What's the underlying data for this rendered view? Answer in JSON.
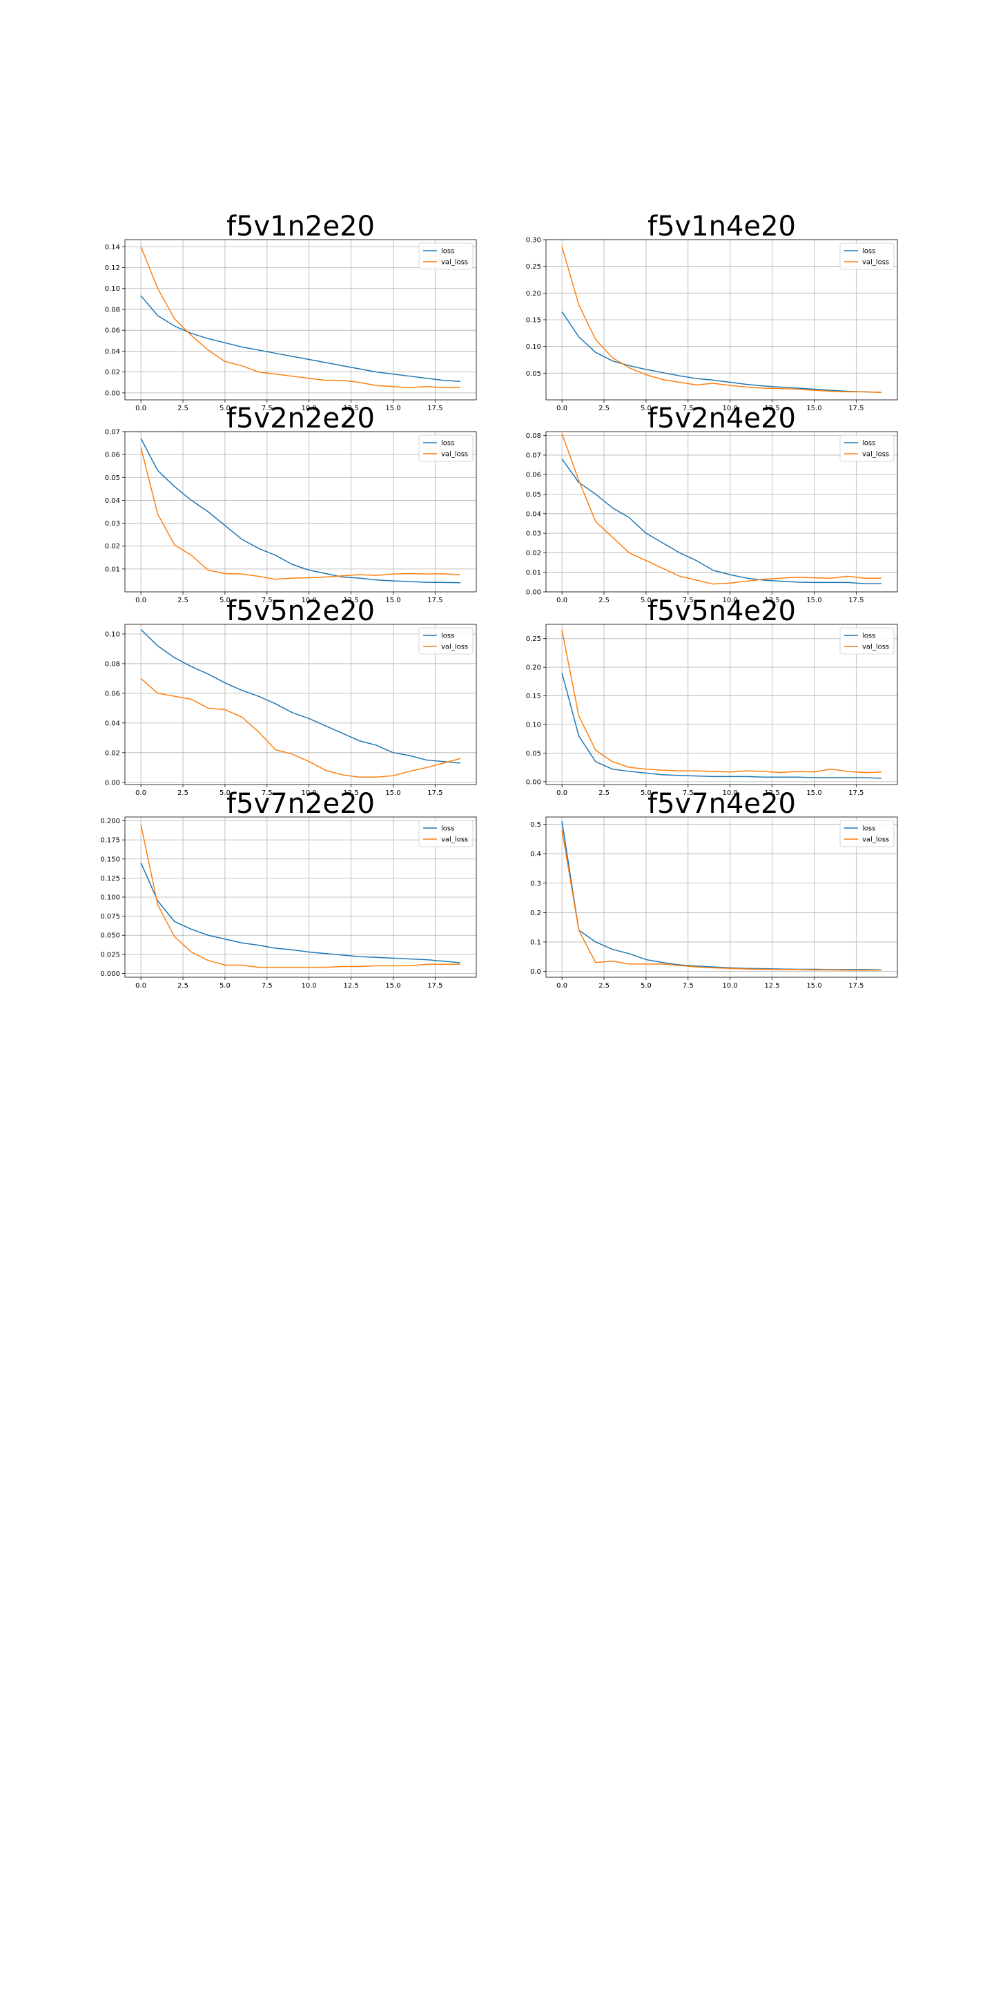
{
  "chart_data": [
    {
      "type": "line",
      "title": "f5v1n2e20",
      "xlabel": "",
      "ylabel": "",
      "x": [
        0,
        1,
        2,
        3,
        4,
        5,
        6,
        7,
        8,
        9,
        10,
        11,
        12,
        13,
        14,
        15,
        16,
        17,
        18,
        19
      ],
      "xlim": [
        -0.95,
        19.95
      ],
      "ylim": [
        -0.0067,
        0.1468
      ],
      "xticks": [
        0.0,
        2.5,
        5.0,
        7.5,
        10.0,
        12.5,
        15.0,
        17.5
      ],
      "xtick_labels": [
        "0.0",
        "2.5",
        "5.0",
        "7.5",
        "10.0",
        "12.5",
        "15.0",
        "17.5"
      ],
      "yticks": [
        0.0,
        0.02,
        0.04,
        0.06,
        0.08,
        0.1,
        0.12,
        0.14
      ],
      "ytick_labels": [
        "0.00",
        "0.02",
        "0.04",
        "0.06",
        "0.08",
        "0.10",
        "0.12",
        "0.14"
      ],
      "grid": true,
      "legend_position": "upper-right",
      "series": [
        {
          "name": "loss",
          "color": "#1f77b4",
          "values": [
            0.093,
            0.074,
            0.064,
            0.057,
            0.052,
            0.048,
            0.044,
            0.041,
            0.038,
            0.035,
            0.032,
            0.029,
            0.026,
            0.023,
            0.02,
            0.018,
            0.016,
            0.014,
            0.012,
            0.011
          ]
        },
        {
          "name": "val_loss",
          "color": "#ff7f0e",
          "values": [
            0.14,
            0.1,
            0.071,
            0.055,
            0.041,
            0.03,
            0.026,
            0.02,
            0.018,
            0.016,
            0.014,
            0.012,
            0.012,
            0.01,
            0.007,
            0.006,
            0.005,
            0.006,
            0.005,
            0.005
          ]
        }
      ]
    },
    {
      "type": "line",
      "title": "f5v1n4e20",
      "xlabel": "",
      "ylabel": "",
      "x": [
        0,
        1,
        2,
        3,
        4,
        5,
        6,
        7,
        8,
        9,
        10,
        11,
        12,
        13,
        14,
        15,
        16,
        17,
        18,
        19
      ],
      "xlim": [
        -0.95,
        19.95
      ],
      "ylim": [
        0.0,
        0.3
      ],
      "xticks": [
        0.0,
        2.5,
        5.0,
        7.5,
        10.0,
        12.5,
        15.0,
        17.5
      ],
      "xtick_labels": [
        "0.0",
        "2.5",
        "5.0",
        "7.5",
        "10.0",
        "12.5",
        "15.0",
        "17.5"
      ],
      "yticks": [
        0.05,
        0.1,
        0.15,
        0.2,
        0.25,
        0.3
      ],
      "ytick_labels": [
        "0.05",
        "0.10",
        "0.15",
        "0.20",
        "0.25",
        "0.30"
      ],
      "grid": true,
      "legend_position": "upper-right",
      "series": [
        {
          "name": "loss",
          "color": "#1f77b4",
          "values": [
            0.165,
            0.118,
            0.089,
            0.073,
            0.064,
            0.057,
            0.051,
            0.045,
            0.04,
            0.037,
            0.033,
            0.029,
            0.026,
            0.024,
            0.022,
            0.02,
            0.018,
            0.016,
            0.015,
            0.014
          ]
        },
        {
          "name": "val_loss",
          "color": "#ff7f0e",
          "values": [
            0.287,
            0.178,
            0.113,
            0.079,
            0.06,
            0.047,
            0.038,
            0.033,
            0.028,
            0.031,
            0.027,
            0.024,
            0.022,
            0.021,
            0.02,
            0.018,
            0.016,
            0.015,
            0.015,
            0.014
          ]
        }
      ]
    },
    {
      "type": "line",
      "title": "f5v2n2e20",
      "xlabel": "",
      "ylabel": "",
      "x": [
        0,
        1,
        2,
        3,
        4,
        5,
        6,
        7,
        8,
        9,
        10,
        11,
        12,
        13,
        14,
        15,
        16,
        17,
        18,
        19
      ],
      "xlim": [
        -0.95,
        19.95
      ],
      "ylim": [
        0.0,
        0.07
      ],
      "xticks": [
        0.0,
        2.5,
        5.0,
        7.5,
        10.0,
        12.5,
        15.0,
        17.5
      ],
      "xtick_labels": [
        "0.0",
        "2.5",
        "5.0",
        "7.5",
        "10.0",
        "12.5",
        "15.0",
        "17.5"
      ],
      "yticks": [
        0.01,
        0.02,
        0.03,
        0.04,
        0.05,
        0.06,
        0.07
      ],
      "ytick_labels": [
        "0.01",
        "0.02",
        "0.03",
        "0.04",
        "0.05",
        "0.06",
        "0.07"
      ],
      "grid": true,
      "legend_position": "upper-right",
      "series": [
        {
          "name": "loss",
          "color": "#1f77b4",
          "values": [
            0.067,
            0.053,
            0.046,
            0.04,
            0.035,
            0.029,
            0.023,
            0.019,
            0.016,
            0.012,
            0.0095,
            0.008,
            0.0065,
            0.006,
            0.0052,
            0.0048,
            0.0045,
            0.0042,
            0.0041,
            0.004
          ]
        },
        {
          "name": "val_loss",
          "color": "#ff7f0e",
          "values": [
            0.063,
            0.034,
            0.0205,
            0.016,
            0.0095,
            0.008,
            0.0078,
            0.0068,
            0.0055,
            0.006,
            0.0062,
            0.0065,
            0.007,
            0.0075,
            0.0072,
            0.0078,
            0.008,
            0.0078,
            0.0079,
            0.0075
          ]
        }
      ]
    },
    {
      "type": "line",
      "title": "f5v2n4e20",
      "xlabel": "",
      "ylabel": "",
      "x": [
        0,
        1,
        2,
        3,
        4,
        5,
        6,
        7,
        8,
        9,
        10,
        11,
        12,
        13,
        14,
        15,
        16,
        17,
        18,
        19
      ],
      "xlim": [
        -0.95,
        19.95
      ],
      "ylim": [
        0.0,
        0.082
      ],
      "xticks": [
        0.0,
        2.5,
        5.0,
        7.5,
        10.0,
        12.5,
        15.0,
        17.5
      ],
      "xtick_labels": [
        "0.0",
        "2.5",
        "5.0",
        "7.5",
        "10.0",
        "12.5",
        "15.0",
        "17.5"
      ],
      "yticks": [
        0.0,
        0.01,
        0.02,
        0.03,
        0.04,
        0.05,
        0.06,
        0.07,
        0.08
      ],
      "ytick_labels": [
        "0.00",
        "0.01",
        "0.02",
        "0.03",
        "0.04",
        "0.05",
        "0.06",
        "0.07",
        "0.08"
      ],
      "grid": true,
      "legend_position": "upper-right",
      "series": [
        {
          "name": "loss",
          "color": "#1f77b4",
          "values": [
            0.068,
            0.056,
            0.05,
            0.043,
            0.038,
            0.03,
            0.025,
            0.02,
            0.016,
            0.011,
            0.0088,
            0.007,
            0.006,
            0.0055,
            0.005,
            0.0048,
            0.0048,
            0.0048,
            0.0042,
            0.0042
          ]
        },
        {
          "name": "val_loss",
          "color": "#ff7f0e",
          "values": [
            0.081,
            0.057,
            0.036,
            0.028,
            0.02,
            0.016,
            0.012,
            0.008,
            0.006,
            0.004,
            0.0045,
            0.0055,
            0.0065,
            0.007,
            0.0075,
            0.0072,
            0.007,
            0.008,
            0.007,
            0.007
          ]
        }
      ]
    },
    {
      "type": "line",
      "title": "f5v5n2e20",
      "xlabel": "",
      "ylabel": "",
      "x": [
        0,
        1,
        2,
        3,
        4,
        5,
        6,
        7,
        8,
        9,
        10,
        11,
        12,
        13,
        14,
        15,
        16,
        17,
        18,
        19
      ],
      "xlim": [
        -0.95,
        19.95
      ],
      "ylim": [
        -0.0015,
        0.1065
      ],
      "xticks": [
        0.0,
        2.5,
        5.0,
        7.5,
        10.0,
        12.5,
        15.0,
        17.5
      ],
      "xtick_labels": [
        "0.0",
        "2.5",
        "5.0",
        "7.5",
        "10.0",
        "12.5",
        "15.0",
        "17.5"
      ],
      "yticks": [
        0.0,
        0.02,
        0.04,
        0.06,
        0.08,
        0.1
      ],
      "ytick_labels": [
        "0.00",
        "0.02",
        "0.04",
        "0.06",
        "0.08",
        "0.10"
      ],
      "grid": true,
      "legend_position": "upper-right",
      "series": [
        {
          "name": "loss",
          "color": "#1f77b4",
          "values": [
            0.103,
            0.092,
            0.084,
            0.078,
            0.073,
            0.067,
            0.062,
            0.058,
            0.053,
            0.047,
            0.043,
            0.038,
            0.033,
            0.028,
            0.025,
            0.02,
            0.018,
            0.015,
            0.014,
            0.013
          ]
        },
        {
          "name": "val_loss",
          "color": "#ff7f0e",
          "values": [
            0.07,
            0.06,
            0.058,
            0.056,
            0.05,
            0.049,
            0.044,
            0.034,
            0.022,
            0.019,
            0.014,
            0.008,
            0.005,
            0.0035,
            0.0035,
            0.0045,
            0.0075,
            0.01,
            0.013,
            0.016
          ]
        }
      ]
    },
    {
      "type": "line",
      "title": "f5v5n4e20",
      "xlabel": "",
      "ylabel": "",
      "x": [
        0,
        1,
        2,
        3,
        4,
        5,
        6,
        7,
        8,
        9,
        10,
        11,
        12,
        13,
        14,
        15,
        16,
        17,
        18,
        19
      ],
      "xlim": [
        -0.95,
        19.95
      ],
      "ylim": [
        -0.005,
        0.275
      ],
      "xticks": [
        0.0,
        2.5,
        5.0,
        7.5,
        10.0,
        12.5,
        15.0,
        17.5
      ],
      "xtick_labels": [
        "0.0",
        "2.5",
        "5.0",
        "7.5",
        "10.0",
        "12.5",
        "15.0",
        "17.5"
      ],
      "yticks": [
        0.0,
        0.05,
        0.1,
        0.15,
        0.2,
        0.25
      ],
      "ytick_labels": [
        "0.00",
        "0.05",
        "0.10",
        "0.15",
        "0.20",
        "0.25"
      ],
      "grid": true,
      "legend_position": "upper-right",
      "series": [
        {
          "name": "loss",
          "color": "#1f77b4",
          "values": [
            0.19,
            0.08,
            0.035,
            0.022,
            0.018,
            0.015,
            0.012,
            0.011,
            0.01,
            0.009,
            0.009,
            0.009,
            0.008,
            0.008,
            0.008,
            0.007,
            0.007,
            0.007,
            0.007,
            0.006
          ]
        },
        {
          "name": "val_loss",
          "color": "#ff7f0e",
          "values": [
            0.265,
            0.115,
            0.055,
            0.035,
            0.025,
            0.022,
            0.02,
            0.019,
            0.019,
            0.018,
            0.017,
            0.019,
            0.018,
            0.016,
            0.018,
            0.017,
            0.022,
            0.018,
            0.016,
            0.017
          ]
        }
      ]
    },
    {
      "type": "line",
      "title": "f5v7n2e20",
      "xlabel": "",
      "ylabel": "",
      "x": [
        0,
        1,
        2,
        3,
        4,
        5,
        6,
        7,
        8,
        9,
        10,
        11,
        12,
        13,
        14,
        15,
        16,
        17,
        18,
        19
      ],
      "xlim": [
        -0.95,
        19.95
      ],
      "ylim": [
        -0.005,
        0.205
      ],
      "xticks": [
        0.0,
        2.5,
        5.0,
        7.5,
        10.0,
        12.5,
        15.0,
        17.5
      ],
      "xtick_labels": [
        "0.0",
        "2.5",
        "5.0",
        "7.5",
        "10.0",
        "12.5",
        "15.0",
        "17.5"
      ],
      "yticks": [
        0.0,
        0.025,
        0.05,
        0.075,
        0.1,
        0.125,
        0.15,
        0.175,
        0.2
      ],
      "ytick_labels": [
        "0.000",
        "0.025",
        "0.050",
        "0.075",
        "0.100",
        "0.125",
        "0.150",
        "0.175",
        "0.200"
      ],
      "grid": true,
      "legend_position": "upper-right",
      "series": [
        {
          "name": "loss",
          "color": "#1f77b4",
          "values": [
            0.145,
            0.095,
            0.068,
            0.058,
            0.05,
            0.045,
            0.04,
            0.037,
            0.033,
            0.031,
            0.028,
            0.026,
            0.024,
            0.022,
            0.021,
            0.02,
            0.019,
            0.018,
            0.016,
            0.014
          ]
        },
        {
          "name": "val_loss",
          "color": "#ff7f0e",
          "values": [
            0.195,
            0.09,
            0.048,
            0.028,
            0.017,
            0.011,
            0.011,
            0.008,
            0.008,
            0.008,
            0.008,
            0.008,
            0.009,
            0.009,
            0.01,
            0.01,
            0.01,
            0.012,
            0.012,
            0.012
          ]
        }
      ]
    },
    {
      "type": "line",
      "title": "f5v7n4e20",
      "xlabel": "",
      "ylabel": "",
      "x": [
        0,
        1,
        2,
        3,
        4,
        5,
        6,
        7,
        8,
        9,
        10,
        11,
        12,
        13,
        14,
        15,
        16,
        17,
        18,
        19
      ],
      "xlim": [
        -0.95,
        19.95
      ],
      "ylim": [
        -0.02,
        0.525
      ],
      "xticks": [
        0.0,
        2.5,
        5.0,
        7.5,
        10.0,
        12.5,
        15.0,
        17.5
      ],
      "xtick_labels": [
        "0.0",
        "2.5",
        "5.0",
        "7.5",
        "10.0",
        "12.5",
        "15.0",
        "17.5"
      ],
      "yticks": [
        0.0,
        0.1,
        0.2,
        0.3,
        0.4,
        0.5
      ],
      "ytick_labels": [
        "0.0",
        "0.1",
        "0.2",
        "0.3",
        "0.4",
        "0.5"
      ],
      "grid": true,
      "legend_position": "upper-right",
      "series": [
        {
          "name": "loss",
          "color": "#1f77b4",
          "values": [
            0.51,
            0.14,
            0.1,
            0.075,
            0.06,
            0.04,
            0.03,
            0.022,
            0.018,
            0.015,
            0.012,
            0.01,
            0.009,
            0.008,
            0.007,
            0.007,
            0.006,
            0.006,
            0.006,
            0.005
          ]
        },
        {
          "name": "val_loss",
          "color": "#ff7f0e",
          "values": [
            0.48,
            0.14,
            0.03,
            0.035,
            0.025,
            0.025,
            0.025,
            0.02,
            0.015,
            0.012,
            0.01,
            0.008,
            0.007,
            0.006,
            0.006,
            0.005,
            0.005,
            0.004,
            0.004,
            0.004
          ]
        }
      ]
    }
  ]
}
